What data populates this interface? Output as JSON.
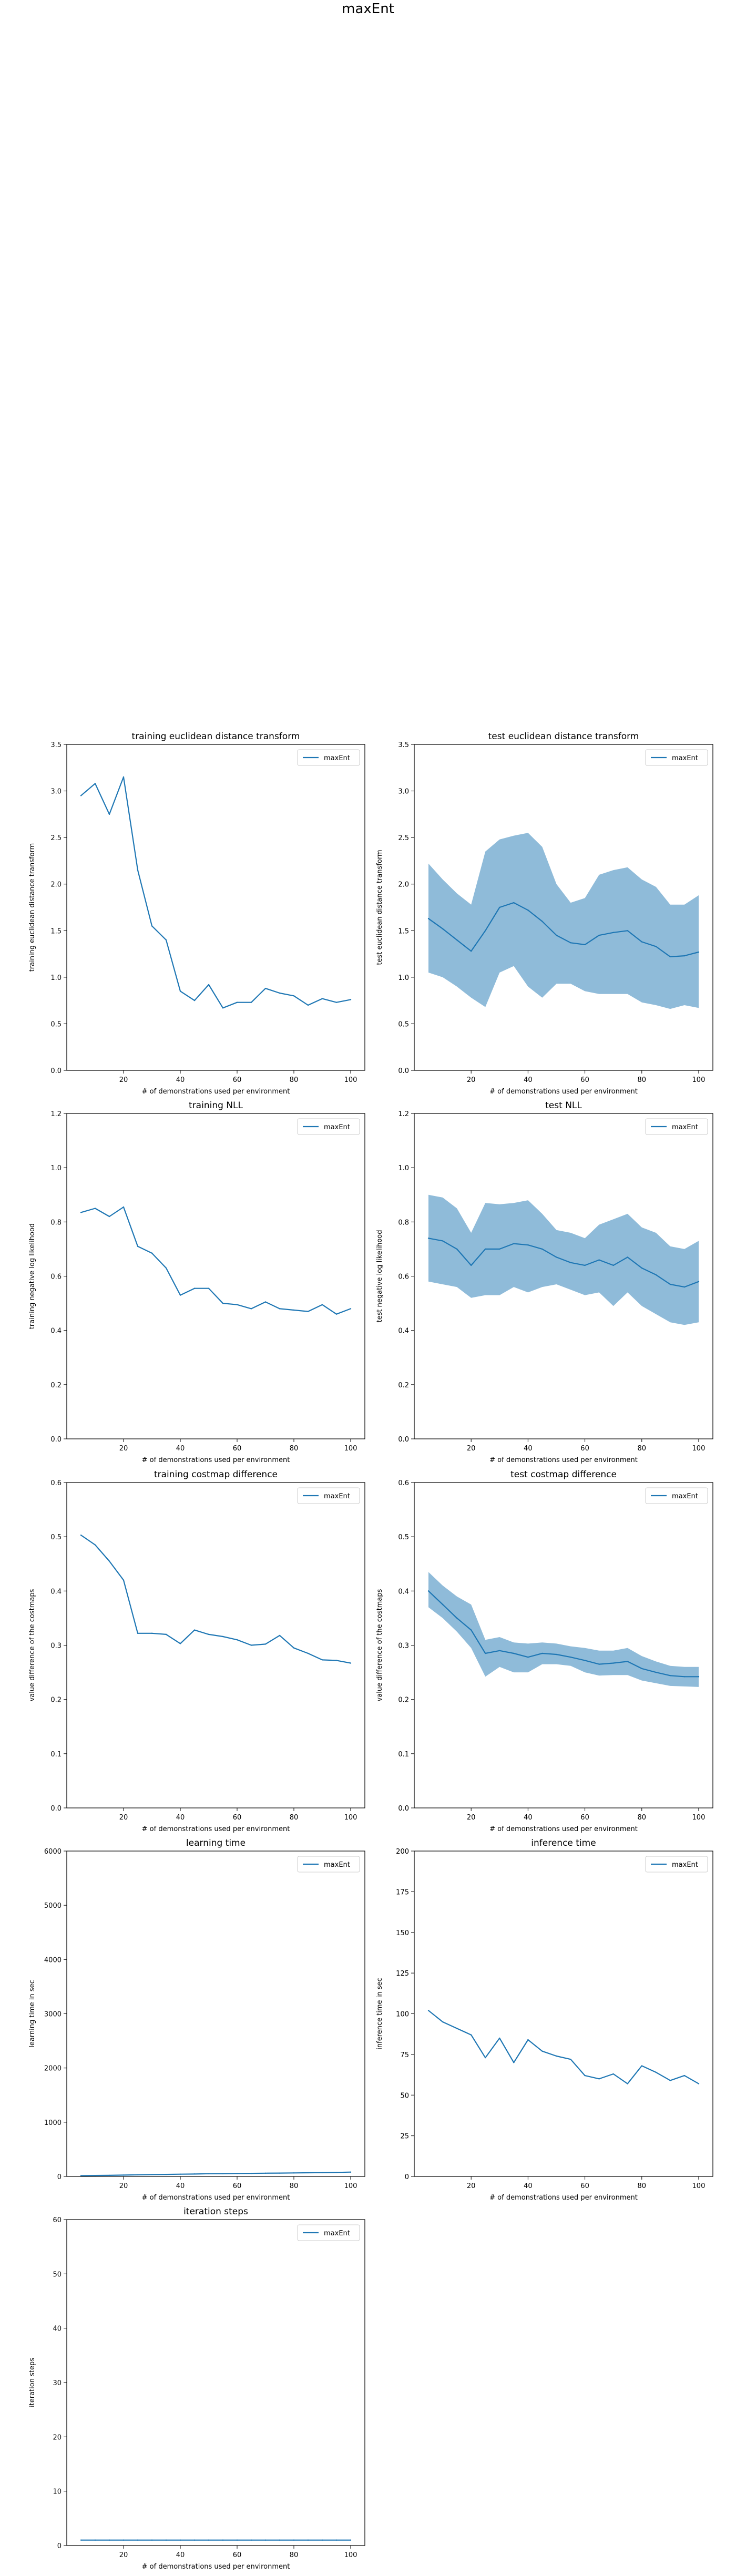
{
  "figure": {
    "title": "maxEnt"
  },
  "colors": {
    "line": "#1f77b4",
    "band": "#1f77b4"
  },
  "chart_data": [
    {
      "type": "line",
      "title": "training euclidean distance transform",
      "xlabel": "# of demonstrations used per environment",
      "ylabel": "training euclidean distance transform",
      "xlim": [
        0,
        105
      ],
      "ylim": [
        0,
        3.5
      ],
      "xticks": [
        20,
        40,
        60,
        80,
        100
      ],
      "xtick_labels": [
        "20",
        "40",
        "60",
        "80",
        "100"
      ],
      "yticks": [
        0,
        0.5,
        1.0,
        1.5,
        2.0,
        2.5,
        3.0,
        3.5
      ],
      "ytick_labels": [
        "0.0",
        "0.5",
        "1.0",
        "1.5",
        "2.0",
        "2.5",
        "3.0",
        "3.5"
      ],
      "legend": {
        "placement": "top-right",
        "entries": [
          "maxEnt"
        ]
      },
      "x": [
        5,
        10,
        15,
        20,
        25,
        30,
        35,
        40,
        45,
        50,
        55,
        60,
        65,
        70,
        75,
        80,
        85,
        90,
        95,
        100
      ],
      "series": [
        {
          "name": "maxEnt",
          "values": [
            2.95,
            3.08,
            2.75,
            3.15,
            2.15,
            1.55,
            1.4,
            0.85,
            0.75,
            0.92,
            0.67,
            0.73,
            0.73,
            0.88,
            0.83,
            0.8,
            0.7,
            0.77,
            0.73,
            0.76
          ]
        }
      ]
    },
    {
      "type": "line",
      "title": "test euclidean distance transform",
      "xlabel": "# of demonstrations used per environment",
      "ylabel": "test euclidean distance transform",
      "xlim": [
        0,
        105
      ],
      "ylim": [
        0,
        3.5
      ],
      "xticks": [
        20,
        40,
        60,
        80,
        100
      ],
      "xtick_labels": [
        "20",
        "40",
        "60",
        "80",
        "100"
      ],
      "yticks": [
        0,
        0.5,
        1.0,
        1.5,
        2.0,
        2.5,
        3.0,
        3.5
      ],
      "ytick_labels": [
        "0.0",
        "0.5",
        "1.0",
        "1.5",
        "2.0",
        "2.5",
        "3.0",
        "3.5"
      ],
      "legend": {
        "placement": "top-right",
        "entries": [
          "maxEnt"
        ]
      },
      "x": [
        5,
        10,
        15,
        20,
        25,
        30,
        35,
        40,
        45,
        50,
        55,
        60,
        65,
        70,
        75,
        80,
        85,
        90,
        95,
        100
      ],
      "series": [
        {
          "name": "maxEnt",
          "values": [
            1.63,
            1.52,
            1.4,
            1.28,
            1.5,
            1.75,
            1.8,
            1.72,
            1.6,
            1.45,
            1.37,
            1.35,
            1.45,
            1.48,
            1.5,
            1.38,
            1.33,
            1.22,
            1.23,
            1.27
          ],
          "lower": [
            1.05,
            1.0,
            0.9,
            0.78,
            0.68,
            1.05,
            1.12,
            0.9,
            0.78,
            0.93,
            0.93,
            0.85,
            0.82,
            0.82,
            0.82,
            0.73,
            0.7,
            0.66,
            0.7,
            0.67
          ],
          "upper": [
            2.22,
            2.05,
            1.9,
            1.78,
            2.35,
            2.48,
            2.52,
            2.55,
            2.4,
            2.0,
            1.8,
            1.85,
            2.1,
            2.15,
            2.18,
            2.05,
            1.97,
            1.78,
            1.78,
            1.88
          ]
        }
      ]
    },
    {
      "type": "line",
      "title": "training NLL",
      "xlabel": "# of demonstrations used per environment",
      "ylabel": "training negative log likelihood",
      "xlim": [
        0,
        105
      ],
      "ylim": [
        0,
        1.2
      ],
      "xticks": [
        20,
        40,
        60,
        80,
        100
      ],
      "xtick_labels": [
        "20",
        "40",
        "60",
        "80",
        "100"
      ],
      "yticks": [
        0,
        0.2,
        0.4,
        0.6,
        0.8,
        1.0,
        1.2
      ],
      "ytick_labels": [
        "0.0",
        "0.2",
        "0.4",
        "0.6",
        "0.8",
        "1.0",
        "1.2"
      ],
      "legend": {
        "placement": "top-right",
        "entries": [
          "maxEnt"
        ]
      },
      "x": [
        5,
        10,
        15,
        20,
        25,
        30,
        35,
        40,
        45,
        50,
        55,
        60,
        65,
        70,
        75,
        80,
        85,
        90,
        95,
        100
      ],
      "series": [
        {
          "name": "maxEnt",
          "values": [
            0.835,
            0.85,
            0.82,
            0.855,
            0.71,
            0.685,
            0.63,
            0.53,
            0.555,
            0.555,
            0.5,
            0.495,
            0.48,
            0.505,
            0.48,
            0.475,
            0.47,
            0.495,
            0.46,
            0.48
          ]
        }
      ]
    },
    {
      "type": "line",
      "title": "test NLL",
      "xlabel": "# of demonstrations used per environment",
      "ylabel": "test negative log likelihood",
      "xlim": [
        0,
        105
      ],
      "ylim": [
        0,
        1.2
      ],
      "xticks": [
        20,
        40,
        60,
        80,
        100
      ],
      "xtick_labels": [
        "20",
        "40",
        "60",
        "80",
        "100"
      ],
      "yticks": [
        0,
        0.2,
        0.4,
        0.6,
        0.8,
        1.0,
        1.2
      ],
      "ytick_labels": [
        "0.0",
        "0.2",
        "0.4",
        "0.6",
        "0.8",
        "1.0",
        "1.2"
      ],
      "legend": {
        "placement": "top-right",
        "entries": [
          "maxEnt"
        ]
      },
      "x": [
        5,
        10,
        15,
        20,
        25,
        30,
        35,
        40,
        45,
        50,
        55,
        60,
        65,
        70,
        75,
        80,
        85,
        90,
        95,
        100
      ],
      "series": [
        {
          "name": "maxEnt",
          "values": [
            0.74,
            0.73,
            0.7,
            0.64,
            0.7,
            0.7,
            0.72,
            0.715,
            0.7,
            0.67,
            0.65,
            0.64,
            0.66,
            0.64,
            0.67,
            0.63,
            0.605,
            0.57,
            0.56,
            0.58
          ],
          "lower": [
            0.58,
            0.57,
            0.56,
            0.52,
            0.53,
            0.53,
            0.56,
            0.54,
            0.56,
            0.57,
            0.55,
            0.53,
            0.54,
            0.49,
            0.54,
            0.49,
            0.46,
            0.43,
            0.42,
            0.43
          ],
          "upper": [
            0.9,
            0.89,
            0.85,
            0.76,
            0.87,
            0.865,
            0.87,
            0.88,
            0.83,
            0.77,
            0.76,
            0.74,
            0.79,
            0.81,
            0.83,
            0.78,
            0.76,
            0.71,
            0.7,
            0.73
          ]
        }
      ]
    },
    {
      "type": "line",
      "title": "training costmap difference",
      "xlabel": "# of demonstrations used per environment",
      "ylabel": "value difference of the costmaps",
      "xlim": [
        0,
        105
      ],
      "ylim": [
        0,
        0.6
      ],
      "xticks": [
        20,
        40,
        60,
        80,
        100
      ],
      "xtick_labels": [
        "20",
        "40",
        "60",
        "80",
        "100"
      ],
      "yticks": [
        0,
        0.1,
        0.2,
        0.3,
        0.4,
        0.5,
        0.6
      ],
      "ytick_labels": [
        "0.0",
        "0.1",
        "0.2",
        "0.3",
        "0.4",
        "0.5",
        "0.6"
      ],
      "legend": {
        "placement": "top-right",
        "entries": [
          "maxEnt"
        ]
      },
      "x": [
        5,
        10,
        15,
        20,
        25,
        30,
        35,
        40,
        45,
        50,
        55,
        60,
        65,
        70,
        75,
        80,
        85,
        90,
        95,
        100
      ],
      "series": [
        {
          "name": "maxEnt",
          "values": [
            0.503,
            0.485,
            0.455,
            0.42,
            0.322,
            0.322,
            0.32,
            0.303,
            0.328,
            0.32,
            0.316,
            0.31,
            0.3,
            0.302,
            0.318,
            0.295,
            0.285,
            0.273,
            0.272,
            0.267
          ]
        }
      ]
    },
    {
      "type": "line",
      "title": "test costmap difference",
      "xlabel": "# of demonstrations used per environment",
      "ylabel": "value difference of the costmaps",
      "xlim": [
        0,
        105
      ],
      "ylim": [
        0,
        0.6
      ],
      "xticks": [
        20,
        40,
        60,
        80,
        100
      ],
      "xtick_labels": [
        "20",
        "40",
        "60",
        "80",
        "100"
      ],
      "yticks": [
        0,
        0.1,
        0.2,
        0.3,
        0.4,
        0.5,
        0.6
      ],
      "ytick_labels": [
        "0.0",
        "0.1",
        "0.2",
        "0.3",
        "0.4",
        "0.5",
        "0.6"
      ],
      "legend": {
        "placement": "top-right",
        "entries": [
          "maxEnt"
        ]
      },
      "x": [
        5,
        10,
        15,
        20,
        25,
        30,
        35,
        40,
        45,
        50,
        55,
        60,
        65,
        70,
        75,
        80,
        85,
        90,
        95,
        100
      ],
      "series": [
        {
          "name": "maxEnt",
          "values": [
            0.4,
            0.375,
            0.35,
            0.328,
            0.285,
            0.29,
            0.285,
            0.278,
            0.285,
            0.283,
            0.278,
            0.272,
            0.265,
            0.267,
            0.27,
            0.257,
            0.25,
            0.244,
            0.242,
            0.242
          ],
          "lower": [
            0.37,
            0.35,
            0.325,
            0.295,
            0.242,
            0.26,
            0.25,
            0.25,
            0.265,
            0.265,
            0.262,
            0.25,
            0.244,
            0.245,
            0.245,
            0.235,
            0.23,
            0.225,
            0.224,
            0.223
          ],
          "upper": [
            0.435,
            0.41,
            0.39,
            0.375,
            0.31,
            0.315,
            0.305,
            0.303,
            0.305,
            0.303,
            0.298,
            0.295,
            0.29,
            0.29,
            0.295,
            0.28,
            0.27,
            0.262,
            0.26,
            0.26
          ]
        }
      ]
    },
    {
      "type": "line",
      "title": "learning time",
      "xlabel": "# of demonstrations used per environment",
      "ylabel": "learning time in sec",
      "xlim": [
        0,
        105
      ],
      "ylim": [
        0,
        6000
      ],
      "xticks": [
        20,
        40,
        60,
        80,
        100
      ],
      "xtick_labels": [
        "20",
        "40",
        "60",
        "80",
        "100"
      ],
      "yticks": [
        0,
        1000,
        2000,
        3000,
        4000,
        5000,
        6000
      ],
      "ytick_labels": [
        "0",
        "1000",
        "2000",
        "3000",
        "4000",
        "5000",
        "6000"
      ],
      "legend": {
        "placement": "top-right",
        "entries": [
          "maxEnt"
        ]
      },
      "x": [
        5,
        10,
        15,
        20,
        25,
        30,
        35,
        40,
        45,
        50,
        55,
        60,
        65,
        70,
        75,
        80,
        85,
        90,
        95,
        100
      ],
      "series": [
        {
          "name": "maxEnt",
          "values": [
            15,
            18,
            20,
            25,
            30,
            35,
            38,
            42,
            45,
            50,
            52,
            55,
            57,
            60,
            62,
            65,
            68,
            70,
            75,
            80
          ]
        }
      ]
    },
    {
      "type": "line",
      "title": "inference time",
      "xlabel": "# of demonstrations used per environment",
      "ylabel": "inference time in sec",
      "xlim": [
        0,
        105
      ],
      "ylim": [
        0,
        200
      ],
      "xticks": [
        20,
        40,
        60,
        80,
        100
      ],
      "xtick_labels": [
        "20",
        "40",
        "60",
        "80",
        "100"
      ],
      "yticks": [
        0,
        25,
        50,
        75,
        100,
        125,
        150,
        175,
        200
      ],
      "ytick_labels": [
        "0",
        "25",
        "50",
        "75",
        "100",
        "125",
        "150",
        "175",
        "200"
      ],
      "legend": {
        "placement": "top-right",
        "entries": [
          "maxEnt"
        ]
      },
      "x": [
        5,
        10,
        15,
        20,
        25,
        30,
        35,
        40,
        45,
        50,
        55,
        60,
        65,
        70,
        75,
        80,
        85,
        90,
        95,
        100
      ],
      "series": [
        {
          "name": "maxEnt",
          "values": [
            102,
            95,
            91,
            87,
            73,
            85,
            70,
            84,
            77,
            74,
            72,
            62,
            60,
            63,
            57,
            68,
            64,
            59,
            62,
            57
          ]
        }
      ]
    },
    {
      "type": "line",
      "title": "iteration steps",
      "xlabel": "# of demonstrations used per environment",
      "ylabel": "iteration steps",
      "xlim": [
        0,
        105
      ],
      "ylim": [
        0,
        60
      ],
      "xticks": [
        20,
        40,
        60,
        80,
        100
      ],
      "xtick_labels": [
        "20",
        "40",
        "60",
        "80",
        "100"
      ],
      "yticks": [
        0,
        10,
        20,
        30,
        40,
        50,
        60
      ],
      "ytick_labels": [
        "0",
        "10",
        "20",
        "30",
        "40",
        "50",
        "60"
      ],
      "legend": {
        "placement": "top-right",
        "entries": [
          "maxEnt"
        ]
      },
      "x": [
        5,
        10,
        15,
        20,
        25,
        30,
        35,
        40,
        45,
        50,
        55,
        60,
        65,
        70,
        75,
        80,
        85,
        90,
        95,
        100
      ],
      "series": [
        {
          "name": "maxEnt",
          "values": [
            1,
            1,
            1,
            1,
            1,
            1,
            1,
            1,
            1,
            1,
            1,
            1,
            1,
            1,
            1,
            1,
            1,
            1,
            1,
            1
          ]
        }
      ]
    }
  ]
}
